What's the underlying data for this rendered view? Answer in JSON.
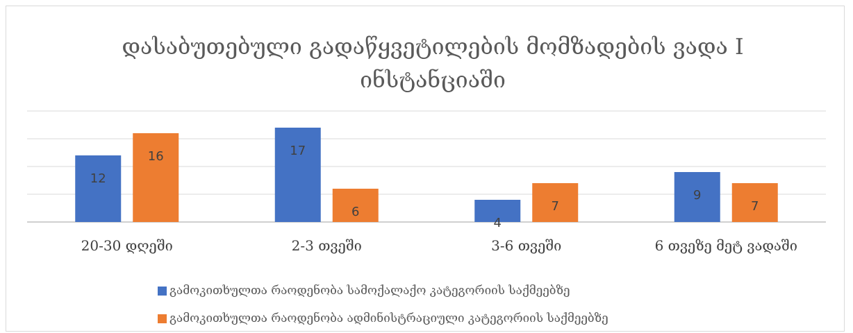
{
  "chart_data": {
    "type": "bar",
    "title": "დასაბუთებული გადაწყვეტილების მომზადების ვადა I ინსტანციაში",
    "categories": [
      "20-30 დღეში",
      "2-3 თვეში",
      "3-6 თვეში",
      "6 თვეზე მეტ ვადაში"
    ],
    "series": [
      {
        "name": "გამოკითხულთა რაოდენობა სამოქალაქო კატეგორიის საქმეებზე",
        "color": "#4472c4",
        "values": [
          12,
          17,
          4,
          9
        ]
      },
      {
        "name": "გამოკითხულთა რაოდენობა ადმინისტრაციული კატეგორიის საქმეებზე",
        "color": "#ed7d31",
        "values": [
          16,
          6,
          7,
          7
        ]
      }
    ],
    "ylim": [
      0,
      20
    ],
    "grid": true,
    "legend": "bottom"
  }
}
